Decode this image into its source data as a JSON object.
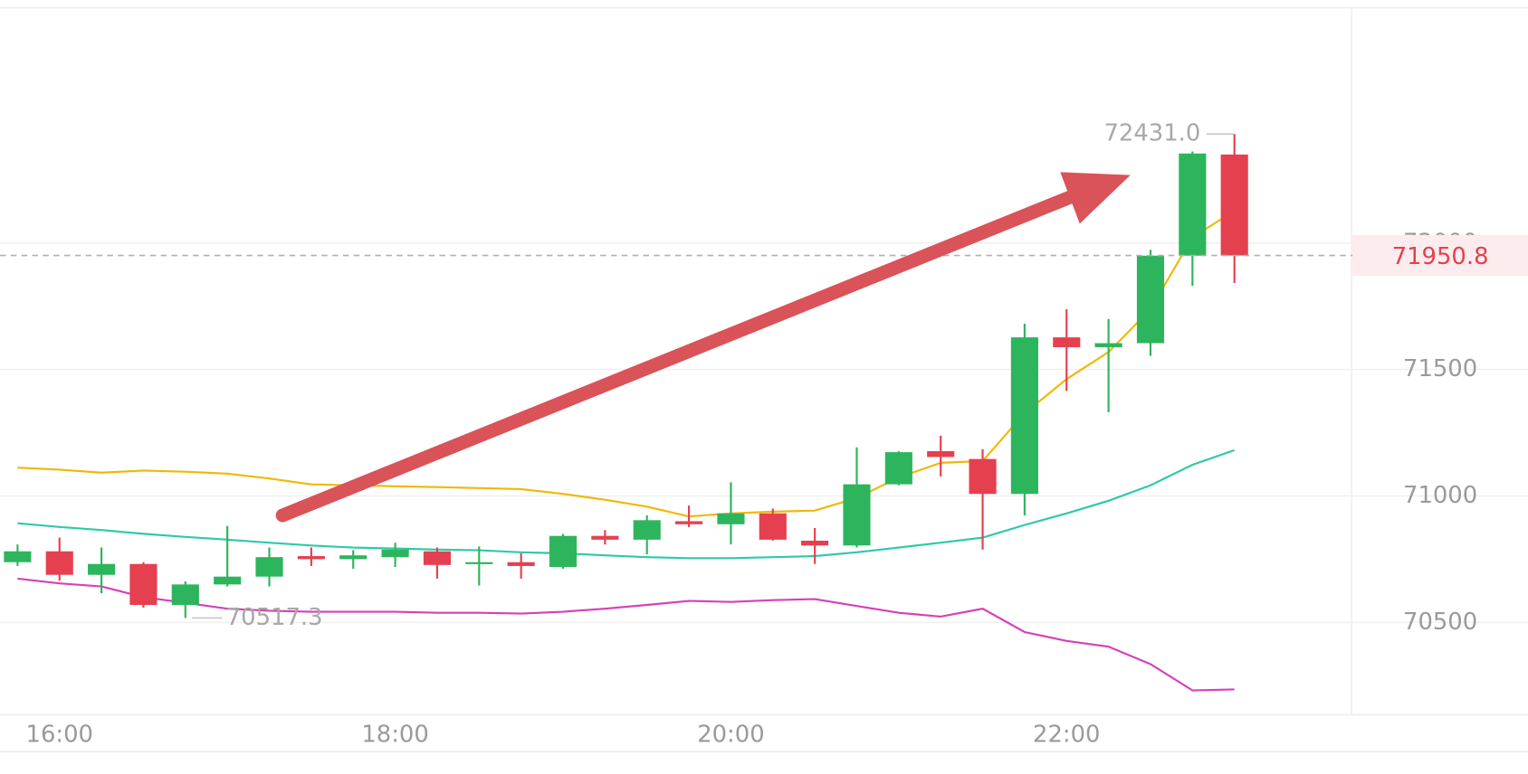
{
  "chart_data": {
    "type": "candlestick",
    "categories": [
      null,
      "16:00",
      null,
      null,
      null,
      null,
      null,
      null,
      null,
      "18:00",
      null,
      null,
      null,
      null,
      null,
      null,
      null,
      "20:00",
      null,
      null,
      null,
      null,
      null,
      null,
      null,
      "22:00",
      null,
      null,
      null,
      null
    ],
    "candles": {
      "open": [
        70738,
        70781,
        70688,
        70731,
        70569,
        70650,
        70681,
        70762,
        70750,
        70758,
        70781,
        70731,
        70738,
        70719,
        70842,
        70827,
        70900,
        70888,
        70931,
        70823,
        70804,
        71046,
        71177,
        71146,
        71008,
        71627,
        71588,
        71604,
        71950,
        72350
      ],
      "high": [
        70808,
        70835,
        70796,
        70738,
        70662,
        70881,
        70796,
        70796,
        70785,
        70815,
        70796,
        70800,
        70773,
        70850,
        70865,
        70923,
        70962,
        71054,
        70950,
        70873,
        71192,
        71177,
        71238,
        71185,
        71681,
        71738,
        71700,
        71973,
        72362,
        72431.0
      ],
      "low": [
        70723,
        70665,
        70615,
        70558,
        70517.3,
        70642,
        70642,
        70723,
        70712,
        70719,
        70673,
        70646,
        70673,
        70712,
        70808,
        70769,
        70877,
        70808,
        70823,
        70731,
        70796,
        71042,
        71077,
        70788,
        70923,
        71415,
        71331,
        71554,
        71831,
        71842
      ],
      "close": [
        70781,
        70688,
        70731,
        70569,
        70650,
        70681,
        70758,
        70750,
        70765,
        70788,
        70727,
        70738,
        70723,
        70842,
        70827,
        70904,
        70888,
        70931,
        70827,
        70804,
        71046,
        71173,
        71154,
        71008,
        71627,
        71588,
        71604,
        71950,
        72354,
        71950.8
      ]
    },
    "up_color": "#2db55d",
    "down_color": "#e5404f",
    "lines": [
      {
        "color": "#f2b705",
        "values": [
          71112,
          71104,
          71092,
          71100,
          71096,
          71088,
          71069,
          71046,
          71042,
          71038,
          71035,
          71031,
          71027,
          71008,
          70985,
          70958,
          70919,
          70931,
          70938,
          70942,
          70992,
          71073,
          71131,
          71138,
          71327,
          71462,
          71569,
          71738,
          72023,
          72127
        ]
      },
      {
        "color": "#2ec9a8",
        "values": [
          70892,
          70877,
          70865,
          70850,
          70838,
          70827,
          70815,
          70804,
          70796,
          70792,
          70788,
          70785,
          70777,
          70773,
          70765,
          70758,
          70754,
          70754,
          70758,
          70762,
          70777,
          70796,
          70815,
          70835,
          70885,
          70931,
          70981,
          71042,
          71123,
          71181
        ]
      },
      {
        "color": "#d63fb8",
        "values": [
          70673,
          70654,
          70642,
          70600,
          70577,
          70554,
          70546,
          70542,
          70542,
          70542,
          70538,
          70538,
          70535,
          70542,
          70554,
          70569,
          70585,
          70581,
          70588,
          70592,
          70565,
          70538,
          70523,
          70554,
          70462,
          70427,
          70404,
          70335,
          70231,
          70235
        ]
      }
    ],
    "ylim": [
      70135,
      72961
    ],
    "yticks": [
      70500,
      71000,
      71500,
      72000
    ],
    "grid": true,
    "last_price": 71950.8,
    "annotations": [
      {
        "value": 72431,
        "label": "72431.0"
      },
      {
        "value": 70517.3,
        "label": "70517.3"
      }
    ]
  }
}
